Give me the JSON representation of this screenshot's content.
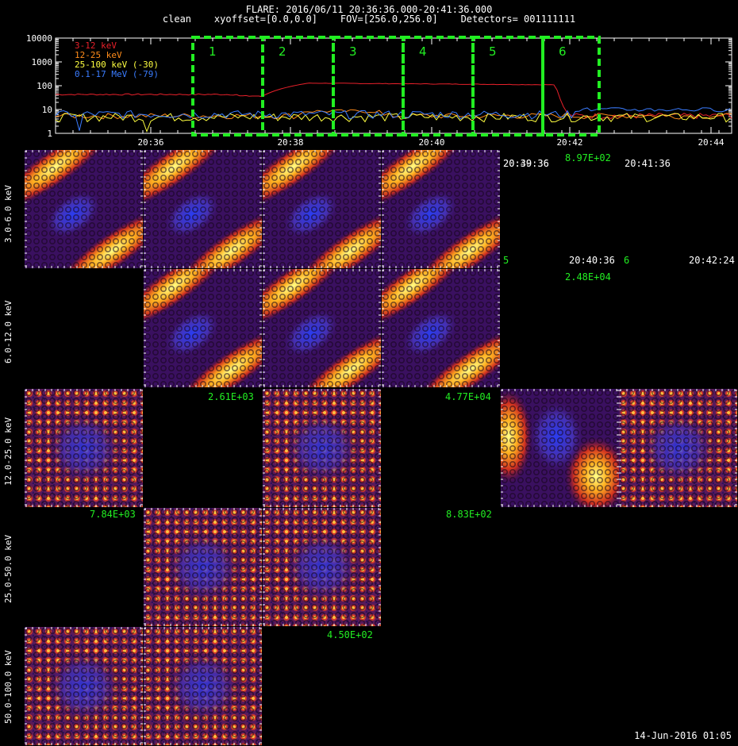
{
  "header": {
    "title": "FLARE: 2016/06/11 20:36:36.000-20:41:36.000",
    "subtitle": "clean    xyoffset=[0.0,0.0]    FOV=[256.0,256.0]    Detectors= 001111111"
  },
  "chart_data": {
    "type": "line",
    "yscale": "log",
    "ylim": [
      1,
      10000
    ],
    "yticks": [
      "10000",
      "1000",
      "100",
      "10",
      "1"
    ],
    "xticks": [
      "20:36",
      "20:38",
      "20:40",
      "20:42",
      "20:44"
    ],
    "legend_placement": "top-left",
    "series": [
      {
        "name": "3-12 keV",
        "color": "#e8202a"
      },
      {
        "name": "12-25 keV",
        "color": "#ff8c1a"
      },
      {
        "name": "25-100 keV (-30)",
        "color": "#ffff40"
      },
      {
        "name": "0.1-17 MeV (-79)",
        "color": "#3a7cff"
      }
    ],
    "intervals": [
      "1",
      "2",
      "3",
      "4",
      "5",
      "6"
    ],
    "interval_color": "#22ee22"
  },
  "rows": [
    "3.0-6.0 keV",
    "6.0-12.0 keV",
    "12.0-25.0 keV",
    "25.0-50.0 keV",
    "50.0-100.0 keV"
  ],
  "overlay": {
    "t1": "20:39:36",
    "t1b": "20:40:36",
    "n1": "8.97E+02",
    "t2": "20:41:36",
    "s5": "5",
    "n6": "6",
    "t3": "20:42:24",
    "n2": "2.48E+04",
    "n3": "2.61E+03",
    "n4": "4.77E+04",
    "n5": "7.84E+03",
    "n6b": "8.83E+02",
    "n7": "4.50E+02"
  },
  "date": "14-Jun-2016 01:05"
}
